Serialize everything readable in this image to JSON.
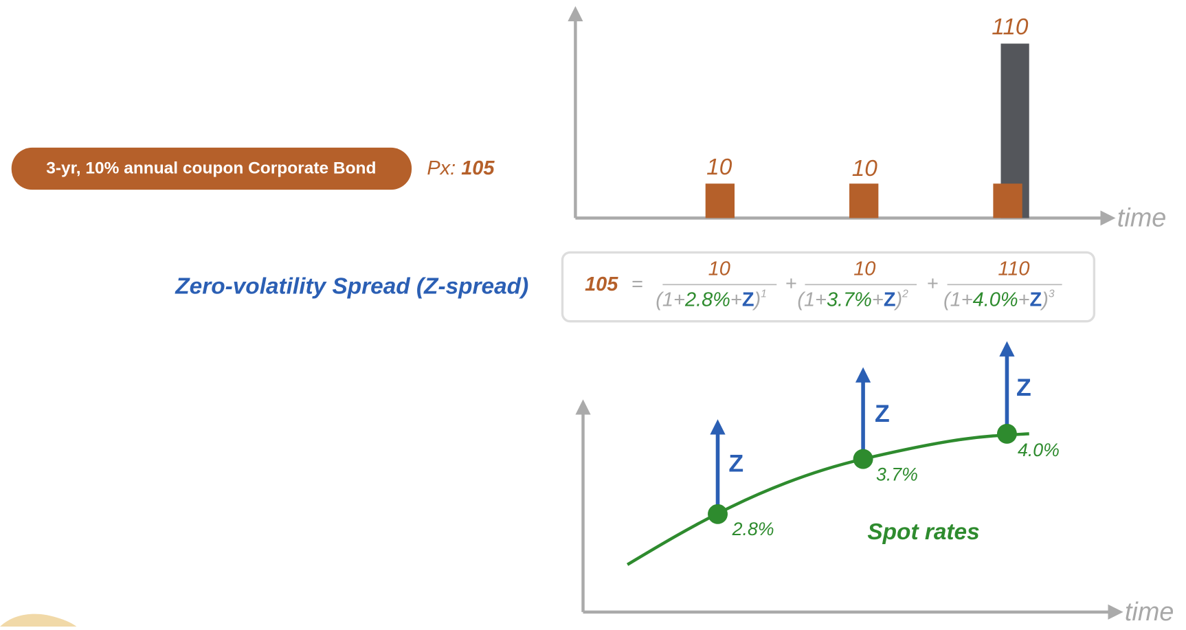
{
  "bond": {
    "label": "3-yr, 10% annual coupon Corporate Bond",
    "price_label": "Px:",
    "price": "105"
  },
  "cashflows": {
    "axis_label": "time",
    "items": [
      "10",
      "10",
      "110"
    ]
  },
  "title": "Zero-volatility Spread (Z-spread)",
  "formula": {
    "price": "105",
    "equals": "=",
    "operator": "+",
    "terms": [
      {
        "numerator": "10",
        "open": "(1+",
        "rate": "2.8%",
        "plus": "+",
        "z": "Z",
        "close": ")",
        "exponent": "1"
      },
      {
        "numerator": "10",
        "open": "(1+",
        "rate": "3.7%",
        "plus": "+",
        "z": "Z",
        "close": ")",
        "exponent": "2"
      },
      {
        "numerator": "110",
        "open": "(1+",
        "rate": "4.0%",
        "plus": "+",
        "z": "Z",
        "close": ")",
        "exponent": "3"
      }
    ]
  },
  "spot_curve": {
    "label": "Spot rates",
    "axis_label": "time",
    "points": [
      {
        "rate": "2.8%",
        "shift": "Z"
      },
      {
        "rate": "3.7%",
        "shift": "Z"
      },
      {
        "rate": "4.0%",
        "shift": "Z"
      }
    ]
  }
}
